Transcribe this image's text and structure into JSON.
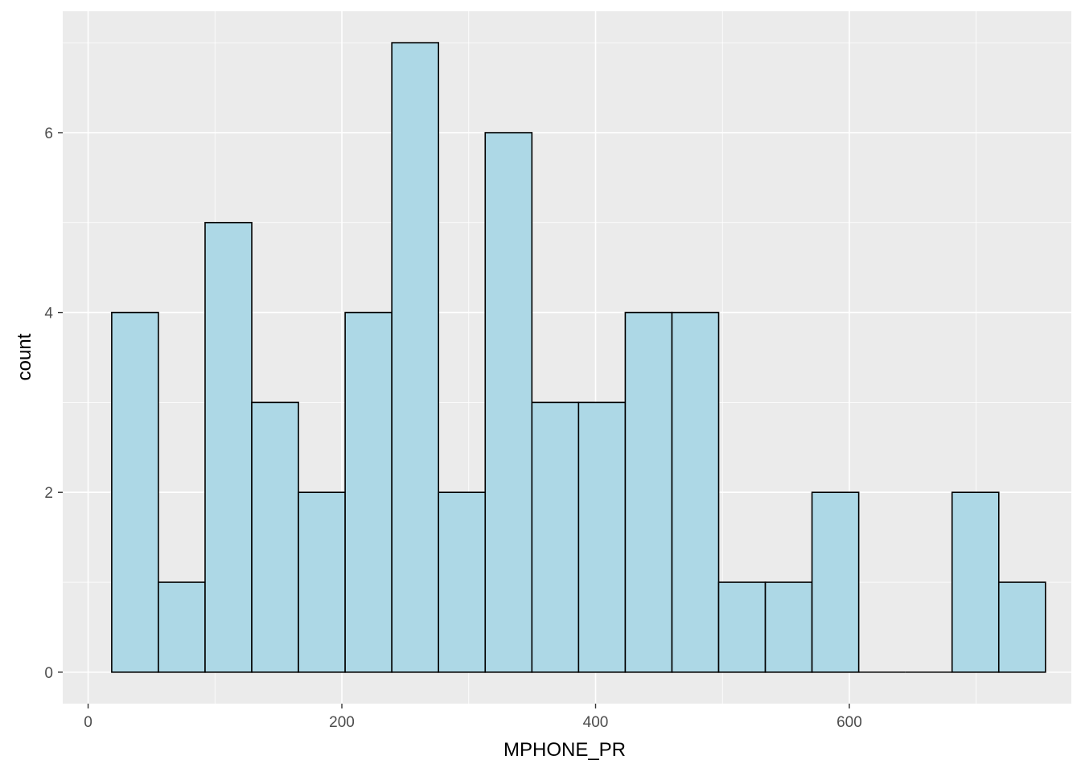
{
  "chart_data": {
    "type": "histogram",
    "xlabel": "MPHONE_PR",
    "ylabel": "count",
    "xlim": [
      -20,
      775
    ],
    "ylim": [
      -0.35,
      7.35
    ],
    "x_ticks": [
      0,
      200,
      400,
      600
    ],
    "y_ticks": [
      0,
      2,
      4,
      6
    ],
    "x_minor_ticks": [
      100,
      300,
      500,
      700
    ],
    "y_minor_ticks": [
      1,
      3,
      5,
      7
    ],
    "bin_start": 18.6,
    "bin_width": 36.8,
    "bins": [
      {
        "x_center": 37,
        "count": 4
      },
      {
        "x_center": 73.8,
        "count": 1
      },
      {
        "x_center": 110.6,
        "count": 5
      },
      {
        "x_center": 147.4,
        "count": 3
      },
      {
        "x_center": 184.2,
        "count": 2
      },
      {
        "x_center": 221,
        "count": 4
      },
      {
        "x_center": 257.8,
        "count": 7
      },
      {
        "x_center": 294.6,
        "count": 2
      },
      {
        "x_center": 331.4,
        "count": 6
      },
      {
        "x_center": 368.2,
        "count": 3
      },
      {
        "x_center": 405,
        "count": 3
      },
      {
        "x_center": 441.8,
        "count": 4
      },
      {
        "x_center": 478.6,
        "count": 4
      },
      {
        "x_center": 515.4,
        "count": 1
      },
      {
        "x_center": 552.2,
        "count": 1
      },
      {
        "x_center": 589,
        "count": 2
      },
      {
        "x_center": 625.8,
        "count": 0
      },
      {
        "x_center": 662.6,
        "count": 0
      },
      {
        "x_center": 699.4,
        "count": 2
      },
      {
        "x_center": 736.2,
        "count": 1
      }
    ],
    "bar_fill": "#add8e6",
    "bar_stroke": "#000000",
    "panel_background": "#ebebeb",
    "grid": true,
    "legend": "none"
  }
}
